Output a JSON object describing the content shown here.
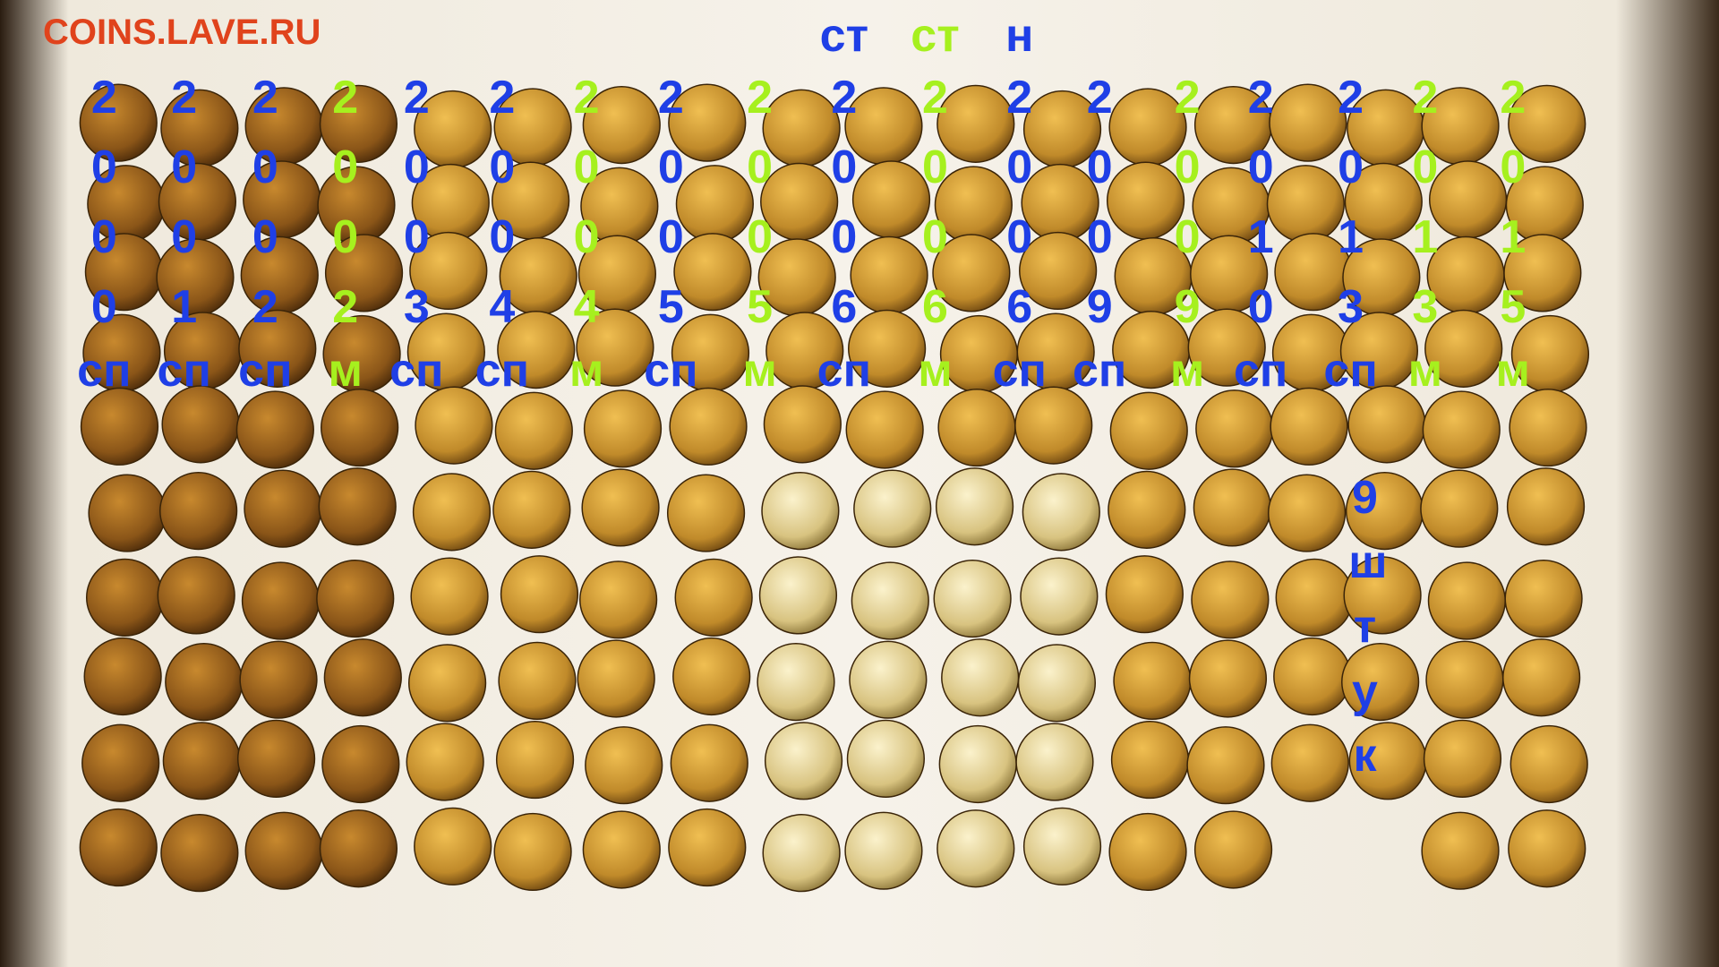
{
  "watermark": "COINS.LAVE.RU",
  "columns": [
    {
      "year": "2000",
      "mint": "сп",
      "color": "#1f3fe6"
    },
    {
      "year": "2001",
      "mint": "сп",
      "color": "#1f3fe6"
    },
    {
      "year": "2002",
      "mint": "сп",
      "color": "#1f3fe6"
    },
    {
      "year": "2002",
      "mint": "м",
      "color": "#a6f01e"
    },
    {
      "year": "2003",
      "mint": "сп",
      "color": "#1f3fe6"
    },
    {
      "year": "2004",
      "mint": "сп",
      "color": "#1f3fe6"
    },
    {
      "year": "2004",
      "mint": "м",
      "color": "#a6f01e"
    },
    {
      "year": "2005",
      "mint": "сп",
      "color": "#1f3fe6"
    },
    {
      "year": "2005",
      "mint": "м",
      "color": "#a6f01e"
    },
    {
      "top": "ст",
      "year": "2006",
      "mint": "сп",
      "color": "#1f3fe6"
    },
    {
      "top": "ст",
      "year": "2006",
      "mint": "м",
      "color": "#a6f01e"
    },
    {
      "top": "н",
      "year": "2006",
      "mint": "сп",
      "color": "#1f3fe6"
    },
    {
      "year": "2009",
      "mint": "сп",
      "color": "#1f3fe6"
    },
    {
      "year": "2009",
      "mint": "м",
      "color": "#a6f01e"
    },
    {
      "year": "2010",
      "mint": "сп",
      "color": "#1f3fe6"
    },
    {
      "year": "2013",
      "mint": "сп",
      "color": "#1f3fe6"
    },
    {
      "year": "2013",
      "mint": "м",
      "color": "#a6f01e"
    },
    {
      "year": "2015",
      "mint": "м",
      "color": "#a6f01e"
    }
  ],
  "note": {
    "text": "9 штук",
    "color": "#1f3fe6"
  }
}
